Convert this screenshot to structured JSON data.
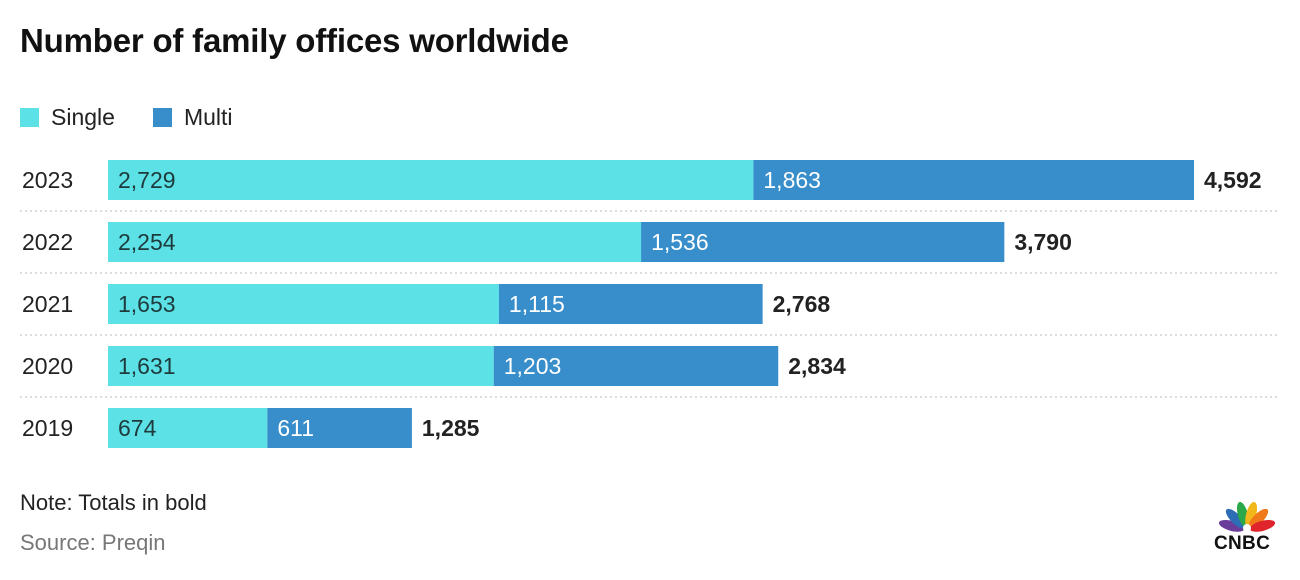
{
  "title": "Number of family offices worldwide",
  "legend": [
    {
      "label": "Single",
      "color": "#5ce1e6"
    },
    {
      "label": "Multi",
      "color": "#388ecb"
    }
  ],
  "note": "Note: Totals in bold",
  "source": "Source: Preqin",
  "logo": {
    "text": "CNBC",
    "icon": "nbc-peacock-icon"
  },
  "chart_data": {
    "type": "bar",
    "orientation": "horizontal",
    "stacked": true,
    "categories": [
      "2023",
      "2022",
      "2021",
      "2020",
      "2019"
    ],
    "series": [
      {
        "name": "Single",
        "color": "#5ce1e6",
        "values": [
          2729,
          2254,
          1653,
          1631,
          674
        ],
        "labels": [
          "2,729",
          "2,254",
          "1,653",
          "1,631",
          "674"
        ]
      },
      {
        "name": "Multi",
        "color": "#388ecb",
        "values": [
          1863,
          1536,
          1115,
          1203,
          611
        ],
        "labels": [
          "1,863",
          "1,536",
          "1,115",
          "1,203",
          "611"
        ]
      }
    ],
    "totals": [
      4592,
      3790,
      2768,
      2834,
      1285
    ],
    "total_labels": [
      "4,592",
      "3,790",
      "2,768",
      "2,834",
      "1,285"
    ],
    "xlim": [
      0,
      4592
    ],
    "gridlines": "dotted separators between rows",
    "legend_position": "top-left"
  }
}
